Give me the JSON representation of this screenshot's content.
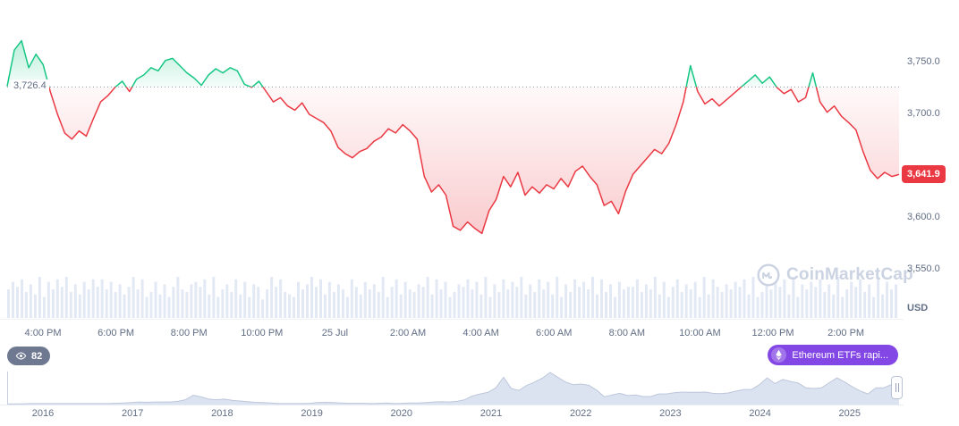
{
  "page": {
    "currency": "USD"
  },
  "watermark": {
    "label": "CoinMarketCap"
  },
  "badges": {
    "watch_count": "82",
    "news_ticker": "Ethereum ETFs rapi..."
  },
  "price_labels": {
    "baseline": "3,726.4",
    "current": "3,641.9"
  },
  "colors": {
    "up": "#16C784",
    "down": "#EA3943",
    "current_badge_bg": "#EA3943",
    "axis_text": "#616E85",
    "volume_bar": "#E3E9F4",
    "navigator_fill": "#DCE3F0",
    "news_pill_bg": "#8347E5",
    "watch_badge_bg": "#6E7891",
    "watermark_text": "#CBD3E2"
  },
  "chart_data": {
    "type": "line",
    "title": "",
    "xlabel": "",
    "ylabel": "USD",
    "grid": false,
    "legend": "none",
    "baseline_value": 3726.4,
    "current_value": 3641.9,
    "ylim": [
      3550,
      3790
    ],
    "y_ticks": [
      {
        "label": "3,750.0",
        "value": 3750
      },
      {
        "label": "3,700.0",
        "value": 3700
      },
      {
        "label": "3,600.0",
        "value": 3600
      },
      {
        "label": "3,550.0",
        "value": 3550
      }
    ],
    "x_ticks": [
      "4:00 PM",
      "6:00 PM",
      "8:00 PM",
      "10:00 PM",
      "25 Jul",
      "2:00 AM",
      "4:00 AM",
      "6:00 AM",
      "8:00 AM",
      "10:00 AM",
      "12:00 PM",
      "2:00 PM"
    ],
    "prices": [
      3727,
      3762,
      3771,
      3745,
      3758,
      3748,
      3722,
      3700,
      3682,
      3676,
      3684,
      3679,
      3696,
      3712,
      3718,
      3726,
      3732,
      3722,
      3734,
      3738,
      3745,
      3742,
      3752,
      3754,
      3747,
      3740,
      3735,
      3728,
      3738,
      3744,
      3740,
      3745,
      3742,
      3729,
      3726,
      3732,
      3722,
      3712,
      3716,
      3708,
      3704,
      3711,
      3700,
      3696,
      3692,
      3684,
      3668,
      3662,
      3658,
      3664,
      3667,
      3674,
      3678,
      3686,
      3682,
      3690,
      3684,
      3676,
      3640,
      3625,
      3632,
      3622,
      3592,
      3588,
      3596,
      3590,
      3585,
      3607,
      3618,
      3640,
      3630,
      3644,
      3622,
      3630,
      3624,
      3632,
      3628,
      3638,
      3630,
      3645,
      3650,
      3640,
      3632,
      3612,
      3616,
      3604,
      3626,
      3642,
      3650,
      3658,
      3666,
      3662,
      3672,
      3690,
      3712,
      3747,
      3722,
      3710,
      3715,
      3708,
      3714,
      3720,
      3726,
      3732,
      3738,
      3730,
      3736,
      3726,
      3720,
      3724,
      3712,
      3716,
      3740,
      3712,
      3702,
      3708,
      3698,
      3692,
      3685,
      3664,
      3646,
      3638,
      3644,
      3640,
      3642
    ],
    "volume_levels": "47583629174859362748584736259481372615943675829146382716504958321746958273641852746391582743659284713658472916384759263847291638574928361745583649271583647192853647582913647582916475836291475836192746",
    "navigator": {
      "year_labels": [
        "2016",
        "2017",
        "2018",
        "2019",
        "2020",
        "2021",
        "2022",
        "2023",
        "2024",
        "2025"
      ],
      "values": [
        0.02,
        0.02,
        0.02,
        0.03,
        0.03,
        0.03,
        0.03,
        0.03,
        0.03,
        0.03,
        0.03,
        0.03,
        0.03,
        0.03,
        0.04,
        0.05,
        0.06,
        0.08,
        0.07,
        0.08,
        0.08,
        0.08,
        0.1,
        0.15,
        0.29,
        0.24,
        0.17,
        0.15,
        0.17,
        0.13,
        0.11,
        0.09,
        0.07,
        0.06,
        0.05,
        0.03,
        0.03,
        0.03,
        0.03,
        0.04,
        0.06,
        0.07,
        0.06,
        0.05,
        0.04,
        0.04,
        0.04,
        0.03,
        0.04,
        0.05,
        0.03,
        0.04,
        0.05,
        0.05,
        0.06,
        0.08,
        0.09,
        0.08,
        0.1,
        0.15,
        0.27,
        0.33,
        0.38,
        0.52,
        0.85,
        0.5,
        0.44,
        0.6,
        0.7,
        0.82,
        1.0,
        0.85,
        0.7,
        0.62,
        0.64,
        0.6,
        0.45,
        0.24,
        0.3,
        0.35,
        0.28,
        0.3,
        0.25,
        0.25,
        0.33,
        0.33,
        0.37,
        0.39,
        0.38,
        0.38,
        0.39,
        0.35,
        0.34,
        0.36,
        0.42,
        0.47,
        0.47,
        0.62,
        0.83,
        0.65,
        0.78,
        0.72,
        0.67,
        0.52,
        0.5,
        0.52,
        0.68,
        0.83,
        0.7,
        0.55,
        0.42,
        0.33,
        0.52,
        0.52,
        0.62,
        0.77
      ]
    }
  }
}
